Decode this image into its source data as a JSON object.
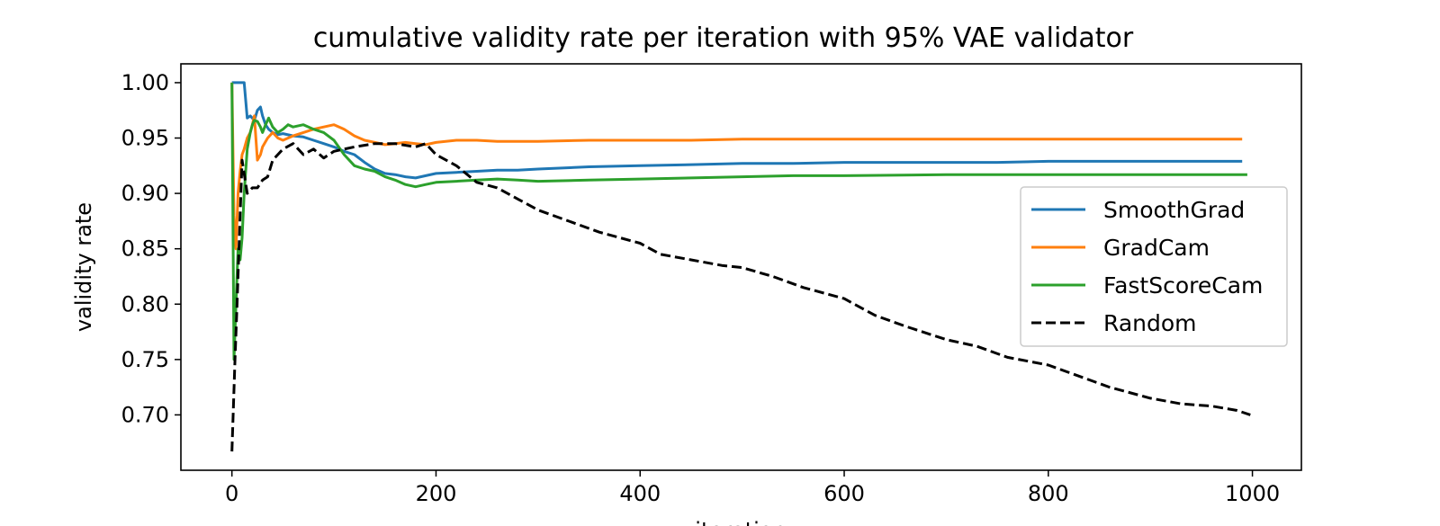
{
  "chart_data": {
    "type": "line",
    "title": "cumulative validity rate per iteration with 95% VAE validator",
    "xlabel": "iteration",
    "ylabel": "validity rate",
    "xlim": [
      -50,
      1048
    ],
    "ylim": [
      0.65,
      1.017
    ],
    "xticks": [
      0,
      200,
      400,
      600,
      800,
      1000
    ],
    "yticks": [
      0.7,
      0.75,
      0.8,
      0.85,
      0.9,
      0.95,
      1.0
    ],
    "xtick_labels": [
      "0",
      "200",
      "400",
      "600",
      "800",
      "1000"
    ],
    "ytick_labels": [
      "0.70",
      "0.75",
      "0.80",
      "0.85",
      "0.90",
      "0.95",
      "1.00"
    ],
    "grid": false,
    "legend_position": "center-right",
    "series": [
      {
        "name": "SmoothGrad",
        "color": "#1f77b4",
        "dash": "solid",
        "x": [
          0,
          5,
          12,
          15,
          18,
          22,
          25,
          28,
          30,
          33,
          36,
          40,
          45,
          50,
          60,
          70,
          80,
          90,
          100,
          110,
          120,
          130,
          140,
          150,
          160,
          170,
          180,
          190,
          200,
          220,
          240,
          260,
          280,
          300,
          350,
          400,
          450,
          500,
          550,
          600,
          650,
          700,
          750,
          800,
          850,
          900,
          950,
          990
        ],
        "y": [
          1.0,
          1.0,
          1.0,
          0.968,
          0.97,
          0.966,
          0.975,
          0.978,
          0.97,
          0.962,
          0.958,
          0.955,
          0.953,
          0.954,
          0.952,
          0.951,
          0.948,
          0.945,
          0.942,
          0.938,
          0.935,
          0.928,
          0.922,
          0.918,
          0.917,
          0.915,
          0.914,
          0.916,
          0.918,
          0.919,
          0.92,
          0.921,
          0.921,
          0.922,
          0.924,
          0.925,
          0.926,
          0.927,
          0.927,
          0.928,
          0.928,
          0.928,
          0.928,
          0.929,
          0.929,
          0.929,
          0.929,
          0.929
        ]
      },
      {
        "name": "GradCam",
        "color": "#ff7f0e",
        "dash": "solid",
        "x": [
          0,
          2,
          4,
          6,
          8,
          10,
          12,
          15,
          18,
          20,
          22,
          25,
          28,
          30,
          35,
          40,
          45,
          50,
          60,
          70,
          80,
          90,
          100,
          110,
          120,
          130,
          140,
          150,
          160,
          170,
          180,
          190,
          200,
          220,
          240,
          260,
          280,
          300,
          350,
          400,
          450,
          500,
          600,
          700,
          800,
          900,
          990
        ],
        "y": [
          1.0,
          0.88,
          0.85,
          0.9,
          0.92,
          0.935,
          0.94,
          0.95,
          0.955,
          0.962,
          0.97,
          0.93,
          0.935,
          0.942,
          0.95,
          0.955,
          0.95,
          0.948,
          0.952,
          0.955,
          0.958,
          0.96,
          0.962,
          0.958,
          0.952,
          0.948,
          0.946,
          0.944,
          0.945,
          0.946,
          0.945,
          0.944,
          0.946,
          0.948,
          0.948,
          0.947,
          0.947,
          0.947,
          0.948,
          0.948,
          0.948,
          0.949,
          0.949,
          0.949,
          0.949,
          0.949,
          0.949
        ]
      },
      {
        "name": "FastScoreCam",
        "color": "#2ca02c",
        "dash": "solid",
        "x": [
          0,
          2,
          4,
          6,
          8,
          10,
          12,
          15,
          18,
          20,
          22,
          25,
          28,
          30,
          33,
          36,
          40,
          45,
          50,
          55,
          60,
          70,
          80,
          90,
          100,
          110,
          120,
          130,
          140,
          150,
          160,
          170,
          180,
          190,
          200,
          220,
          240,
          260,
          280,
          300,
          350,
          400,
          450,
          500,
          550,
          600,
          700,
          800,
          900,
          995
        ],
        "y": [
          1.0,
          0.75,
          0.8,
          0.85,
          0.84,
          0.86,
          0.9,
          0.94,
          0.955,
          0.962,
          0.966,
          0.965,
          0.96,
          0.955,
          0.962,
          0.968,
          0.96,
          0.955,
          0.958,
          0.962,
          0.96,
          0.962,
          0.958,
          0.955,
          0.948,
          0.935,
          0.925,
          0.922,
          0.92,
          0.915,
          0.912,
          0.908,
          0.906,
          0.908,
          0.91,
          0.911,
          0.912,
          0.913,
          0.912,
          0.911,
          0.912,
          0.913,
          0.914,
          0.915,
          0.916,
          0.916,
          0.917,
          0.917,
          0.917,
          0.917
        ]
      },
      {
        "name": "Random",
        "color": "#000000",
        "dash": "dashed",
        "x": [
          0,
          3,
          5,
          8,
          10,
          15,
          20,
          25,
          30,
          35,
          40,
          50,
          60,
          70,
          80,
          90,
          100,
          120,
          140,
          160,
          180,
          190,
          200,
          220,
          240,
          260,
          280,
          300,
          330,
          360,
          400,
          420,
          450,
          480,
          500,
          530,
          560,
          600,
          630,
          660,
          700,
          730,
          760,
          800,
          830,
          860,
          900,
          930,
          960,
          985,
          998
        ],
        "y": [
          0.667,
          0.75,
          0.8,
          0.88,
          0.93,
          0.9,
          0.905,
          0.905,
          0.912,
          0.915,
          0.93,
          0.94,
          0.945,
          0.935,
          0.94,
          0.932,
          0.938,
          0.942,
          0.945,
          0.945,
          0.942,
          0.945,
          0.935,
          0.925,
          0.91,
          0.905,
          0.895,
          0.885,
          0.875,
          0.865,
          0.855,
          0.845,
          0.84,
          0.835,
          0.833,
          0.825,
          0.815,
          0.805,
          0.79,
          0.78,
          0.768,
          0.762,
          0.752,
          0.745,
          0.735,
          0.725,
          0.715,
          0.71,
          0.708,
          0.704,
          0.7
        ]
      }
    ]
  }
}
